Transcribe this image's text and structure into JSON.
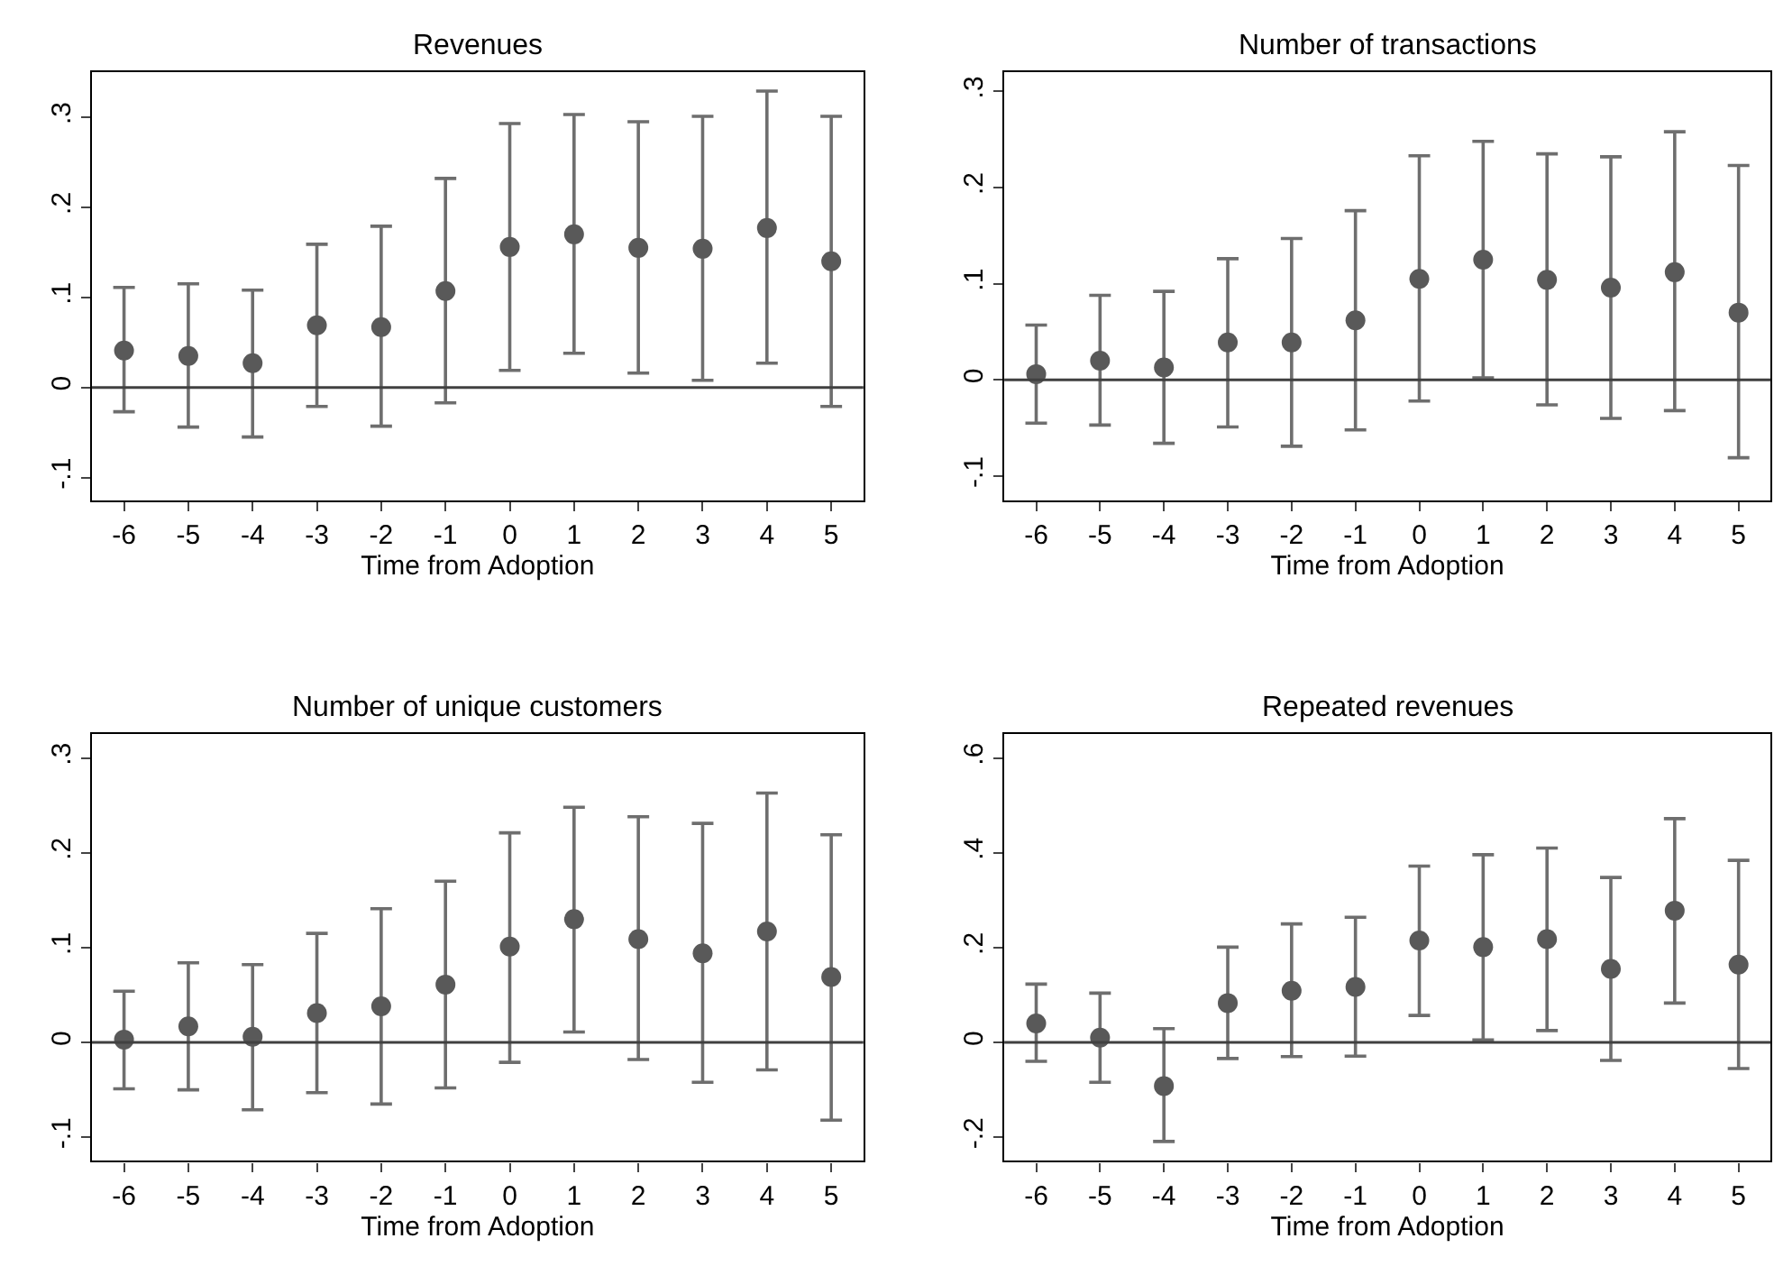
{
  "chart_data": [
    {
      "type": "scatter",
      "title": "Revenues",
      "xlabel": "Time from Adoption",
      "x": [
        -6,
        -5,
        -4,
        -3,
        -2,
        -1,
        0,
        1,
        2,
        3,
        4,
        5
      ],
      "xlim": [
        -6.5,
        5.5
      ],
      "xticks": [
        -6,
        -5,
        -4,
        -3,
        -2,
        -1,
        0,
        1,
        2,
        3,
        4,
        5
      ],
      "ylim": [
        -0.125,
        0.35
      ],
      "yticks": [
        {
          "value": -0.1,
          "label": "-.1"
        },
        0,
        {
          "value": 0.1,
          "label": ".1"
        },
        {
          "value": 0.2,
          "label": ".2"
        },
        {
          "value": 0.3,
          "label": ".3"
        }
      ],
      "grid": false,
      "marker": "circle",
      "series": [
        {
          "color": "#595959",
          "values": [
            0.041,
            0.035,
            0.027,
            0.069,
            0.067,
            0.107,
            0.156,
            0.17,
            0.155,
            0.154,
            0.177,
            0.14
          ],
          "errors": [
            [
              -0.027,
              0.111
            ],
            [
              -0.044,
              0.115
            ],
            [
              -0.055,
              0.108
            ],
            [
              -0.021,
              0.159
            ],
            [
              -0.043,
              0.179
            ],
            [
              -0.017,
              0.232
            ],
            [
              0.019,
              0.293
            ],
            [
              0.038,
              0.303
            ],
            [
              0.016,
              0.295
            ],
            [
              0.008,
              0.301
            ],
            [
              0.027,
              0.329
            ],
            [
              -0.021,
              0.301
            ]
          ]
        }
      ],
      "ref_lines": [
        {
          "axis": "y",
          "value": 0,
          "color": "#404040"
        }
      ]
    },
    {
      "type": "scatter",
      "title": "Number of transactions",
      "xlabel": "Time from Adoption",
      "x": [
        -6,
        -5,
        -4,
        -3,
        -2,
        -1,
        0,
        1,
        2,
        3,
        4,
        5
      ],
      "xlim": [
        -6.5,
        5.5
      ],
      "xticks": [
        -6,
        -5,
        -4,
        -3,
        -2,
        -1,
        0,
        1,
        2,
        3,
        4,
        5
      ],
      "ylim": [
        -0.125,
        0.32
      ],
      "yticks": [
        {
          "value": -0.1,
          "label": "-.1"
        },
        0,
        {
          "value": 0.1,
          "label": ".1"
        },
        {
          "value": 0.2,
          "label": ".2"
        },
        {
          "value": 0.3,
          "label": ".3"
        }
      ],
      "grid": false,
      "marker": "circle",
      "series": [
        {
          "color": "#595959",
          "values": [
            0.006,
            0.02,
            0.013,
            0.039,
            0.039,
            0.062,
            0.105,
            0.125,
            0.104,
            0.096,
            0.112,
            0.07
          ],
          "errors": [
            [
              -0.045,
              0.057
            ],
            [
              -0.047,
              0.088
            ],
            [
              -0.066,
              0.092
            ],
            [
              -0.049,
              0.126
            ],
            [
              -0.069,
              0.147
            ],
            [
              -0.052,
              0.176
            ],
            [
              -0.022,
              0.233
            ],
            [
              0.002,
              0.248
            ],
            [
              -0.026,
              0.235
            ],
            [
              -0.04,
              0.232
            ],
            [
              -0.032,
              0.258
            ],
            [
              -0.081,
              0.223
            ]
          ]
        }
      ],
      "ref_lines": [
        {
          "axis": "y",
          "value": 0,
          "color": "#404040"
        }
      ]
    },
    {
      "type": "scatter",
      "title": "Number of unique customers",
      "xlabel": "Time from Adoption",
      "x": [
        -6,
        -5,
        -4,
        -3,
        -2,
        -1,
        0,
        1,
        2,
        3,
        4,
        5
      ],
      "xlim": [
        -6.5,
        5.5
      ],
      "xticks": [
        -6,
        -5,
        -4,
        -3,
        -2,
        -1,
        0,
        1,
        2,
        3,
        4,
        5
      ],
      "ylim": [
        -0.125,
        0.325
      ],
      "yticks": [
        {
          "value": -0.1,
          "label": "-.1"
        },
        0,
        {
          "value": 0.1,
          "label": ".1"
        },
        {
          "value": 0.2,
          "label": ".2"
        },
        {
          "value": 0.3,
          "label": ".3"
        }
      ],
      "grid": false,
      "marker": "circle",
      "series": [
        {
          "color": "#595959",
          "values": [
            0.003,
            0.017,
            0.006,
            0.031,
            0.038,
            0.061,
            0.101,
            0.13,
            0.109,
            0.094,
            0.117,
            0.069
          ],
          "errors": [
            [
              -0.049,
              0.054
            ],
            [
              -0.05,
              0.084
            ],
            [
              -0.071,
              0.082
            ],
            [
              -0.053,
              0.115
            ],
            [
              -0.065,
              0.141
            ],
            [
              -0.048,
              0.17
            ],
            [
              -0.021,
              0.221
            ],
            [
              0.011,
              0.248
            ],
            [
              -0.018,
              0.238
            ],
            [
              -0.042,
              0.231
            ],
            [
              -0.029,
              0.263
            ],
            [
              -0.082,
              0.219
            ]
          ]
        }
      ],
      "ref_lines": [
        {
          "axis": "y",
          "value": 0,
          "color": "#404040"
        }
      ]
    },
    {
      "type": "scatter",
      "title": "Repeated revenues",
      "xlabel": "Time from Adoption",
      "x": [
        -6,
        -5,
        -4,
        -3,
        -2,
        -1,
        0,
        1,
        2,
        3,
        4,
        5
      ],
      "xlim": [
        -6.5,
        5.5
      ],
      "xticks": [
        -6,
        -5,
        -4,
        -3,
        -2,
        -1,
        0,
        1,
        2,
        3,
        4,
        5
      ],
      "ylim": [
        -0.25,
        0.65
      ],
      "yticks": [
        {
          "value": -0.2,
          "label": "-.2"
        },
        0,
        {
          "value": 0.2,
          "label": ".2"
        },
        {
          "value": 0.4,
          "label": ".4"
        },
        {
          "value": 0.6,
          "label": ".6"
        }
      ],
      "grid": false,
      "marker": "circle",
      "series": [
        {
          "color": "#595959",
          "values": [
            0.04,
            0.01,
            -0.092,
            0.083,
            0.109,
            0.117,
            0.215,
            0.201,
            0.218,
            0.155,
            0.278,
            0.164
          ],
          "errors": [
            [
              -0.04,
              0.123
            ],
            [
              -0.084,
              0.104
            ],
            [
              -0.209,
              0.029
            ],
            [
              -0.034,
              0.201
            ],
            [
              -0.03,
              0.25
            ],
            [
              -0.029,
              0.264
            ],
            [
              0.057,
              0.372
            ],
            [
              0.005,
              0.396
            ],
            [
              0.025,
              0.41
            ],
            [
              -0.038,
              0.348
            ],
            [
              0.083,
              0.472
            ],
            [
              -0.055,
              0.384
            ]
          ]
        }
      ],
      "ref_lines": [
        {
          "axis": "y",
          "value": 0,
          "color": "#404040"
        }
      ]
    }
  ]
}
